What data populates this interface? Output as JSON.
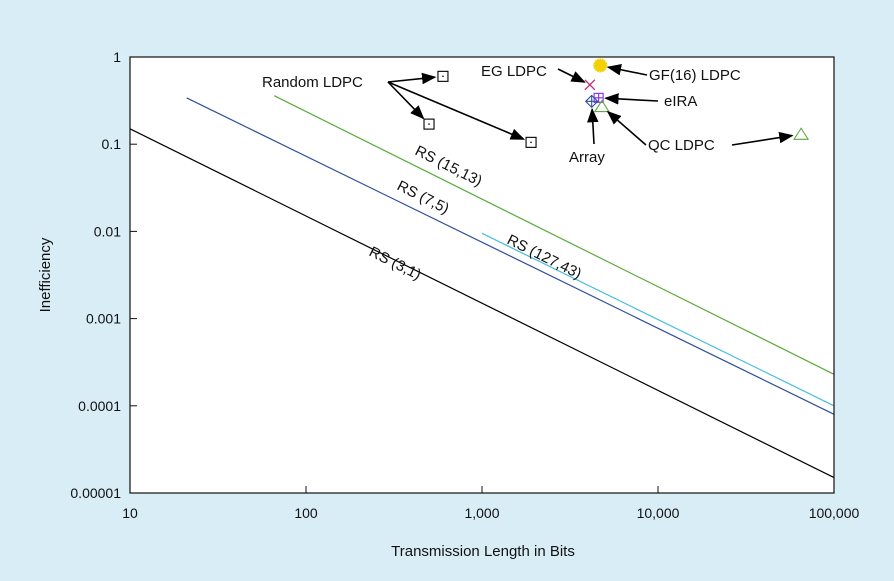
{
  "chart_data": {
    "type": "scatter",
    "xlabel": "Transmission Length in Bits",
    "ylabel": "Inefficiency",
    "xscale": "log",
    "yscale": "log",
    "xlim": [
      10,
      100000
    ],
    "ylim": [
      1e-05,
      1
    ],
    "grid": false,
    "legend": "none",
    "background_color": "#d9edf7",
    "plot_color": "#ffffff",
    "x_ticks": [
      10,
      100,
      1000,
      10000,
      100000
    ],
    "x_tick_labels": [
      "10",
      "100",
      "1,000",
      "10,000",
      "100,000"
    ],
    "y_ticks": [
      1,
      0.1,
      0.01,
      0.001,
      0.0001,
      1e-05
    ],
    "y_tick_labels": [
      "1",
      "0.1",
      "0.01",
      "0.001",
      "0.0001",
      "0.00001"
    ],
    "lines": [
      {
        "label": "RS (3,1)",
        "color": "#000000",
        "x": [
          10,
          100000
        ],
        "y": [
          0.15,
          1.5e-05
        ]
      },
      {
        "label": "RS (7,5)",
        "color": "#2e4f9e",
        "x": [
          21,
          100000
        ],
        "y": [
          0.34,
          8e-05
        ]
      },
      {
        "label": "RS (15,13)",
        "color": "#5aaa3c",
        "x": [
          66,
          100000
        ],
        "y": [
          0.36,
          0.00023
        ]
      },
      {
        "label": "RS (127,43)",
        "color": "#48bce0",
        "x": [
          1000,
          100000
        ],
        "y": [
          0.0095,
          0.0001
        ]
      }
    ],
    "points": [
      {
        "group": "Random LDPC",
        "x": 600,
        "y": 0.6,
        "marker": "square",
        "color": "#000000"
      },
      {
        "group": "Random LDPC",
        "x": 500,
        "y": 0.17,
        "marker": "square",
        "color": "#000000"
      },
      {
        "group": "Random LDPC",
        "x": 1900,
        "y": 0.105,
        "marker": "square",
        "color": "#000000"
      },
      {
        "group": "EG LDPC",
        "x": 4100,
        "y": 0.48,
        "marker": "x",
        "color": "#c0287c"
      },
      {
        "group": "GF(16) LDPC",
        "x": 4700,
        "y": 0.8,
        "marker": "star",
        "color": "#f3d000"
      },
      {
        "group": "eIRA",
        "x": 4600,
        "y": 0.34,
        "marker": "square-plus",
        "color": "#8a2be2"
      },
      {
        "group": "Array",
        "x": 4200,
        "y": 0.31,
        "marker": "diamond-plus",
        "color": "#2e4f9e"
      },
      {
        "group": "QC LDPC",
        "x": 4800,
        "y": 0.27,
        "marker": "triangle",
        "color": "#5aaa3c"
      },
      {
        "group": "QC LDPC",
        "x": 65000,
        "y": 0.13,
        "marker": "triangle",
        "color": "#5aaa3c"
      }
    ],
    "annotations": {
      "random_ldpc": "Random LDPC",
      "eg_ldpc": "EG LDPC",
      "gf16_ldpc": "GF(16) LDPC",
      "eira": "eIRA",
      "array": "Array",
      "qc_ldpc": "QC LDPC"
    }
  }
}
